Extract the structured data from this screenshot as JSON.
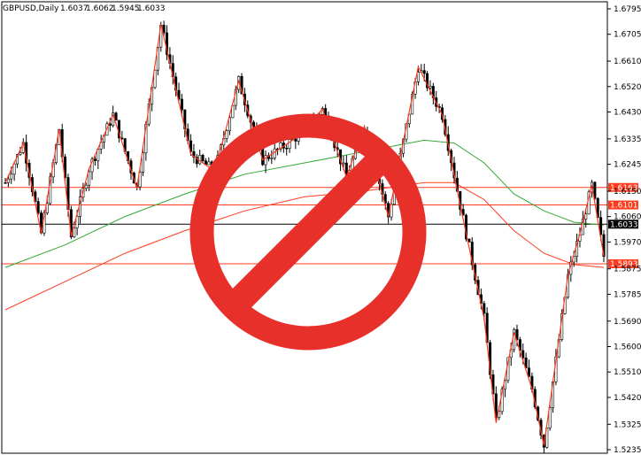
{
  "chart_data": {
    "type": "candlestick",
    "header": {
      "symbol": "GBPUSD,Daily",
      "open": "1.6037",
      "high": "1.6062",
      "low": "1.5945",
      "close": "1.6033"
    },
    "y_ticks": [
      "1.6795",
      "1.6705",
      "1.6610",
      "1.6520",
      "1.6430",
      "1.6335",
      "1.6245",
      "1.6150",
      "1.6060",
      "1.5970",
      "1.5875",
      "1.5785",
      "1.5690",
      "1.5600",
      "1.5510",
      "1.5420",
      "1.5325",
      "1.5235"
    ],
    "ylim": [
      1.5235,
      1.6795
    ],
    "levels": [
      {
        "value": 1.6163,
        "label": "1.6163",
        "color": "#ff3b1f"
      },
      {
        "value": 1.6101,
        "label": "1.6101",
        "color": "#ff3b1f"
      },
      {
        "value": 1.6033,
        "label": "1.6033",
        "color": "#000000"
      },
      {
        "value": 1.5893,
        "label": "1.5893",
        "color": "#ff3b1f"
      }
    ],
    "zigzag": [
      [
        0,
        1.618
      ],
      [
        6,
        1.632
      ],
      [
        12,
        1.6
      ],
      [
        18,
        1.637
      ],
      [
        22,
        1.599
      ],
      [
        28,
        1.623
      ],
      [
        36,
        1.642
      ],
      [
        44,
        1.616
      ],
      [
        52,
        1.674
      ],
      [
        62,
        1.628
      ],
      [
        70,
        1.622
      ],
      [
        78,
        1.654
      ],
      [
        86,
        1.626
      ],
      [
        96,
        1.633
      ],
      [
        106,
        1.644
      ],
      [
        114,
        1.62
      ],
      [
        120,
        1.638
      ],
      [
        128,
        1.606
      ],
      [
        138,
        1.659
      ],
      [
        146,
        1.642
      ],
      [
        152,
        1.61
      ],
      [
        160,
        1.57
      ],
      [
        164,
        1.533
      ],
      [
        170,
        1.565
      ],
      [
        176,
        1.545
      ],
      [
        180,
        1.525
      ],
      [
        188,
        1.585
      ],
      [
        192,
        1.6
      ],
      [
        196,
        1.617
      ],
      [
        200,
        1.592
      ]
    ],
    "ma_fast": {
      "color": "#33aa33",
      "points": [
        [
          0,
          1.588
        ],
        [
          20,
          1.596
        ],
        [
          40,
          1.606
        ],
        [
          60,
          1.614
        ],
        [
          80,
          1.621
        ],
        [
          100,
          1.625
        ],
        [
          120,
          1.629
        ],
        [
          140,
          1.633
        ],
        [
          150,
          1.632
        ],
        [
          160,
          1.625
        ],
        [
          170,
          1.614
        ],
        [
          180,
          1.608
        ],
        [
          190,
          1.604
        ],
        [
          200,
          1.603
        ]
      ]
    },
    "ma_slow": {
      "color": "#ff3b1f",
      "points": [
        [
          0,
          1.573
        ],
        [
          20,
          1.583
        ],
        [
          40,
          1.593
        ],
        [
          60,
          1.601
        ],
        [
          80,
          1.608
        ],
        [
          100,
          1.613
        ],
        [
          120,
          1.615
        ],
        [
          140,
          1.618
        ],
        [
          150,
          1.618
        ],
        [
          160,
          1.612
        ],
        [
          170,
          1.601
        ],
        [
          180,
          1.593
        ],
        [
          190,
          1.589
        ],
        [
          200,
          1.588
        ]
      ]
    },
    "candle_count": 201,
    "candle_color_up": "#000000",
    "candle_color_down": "#000000",
    "overlay": {
      "type": "prohibition-sign",
      "color": "#e8302a"
    }
  }
}
